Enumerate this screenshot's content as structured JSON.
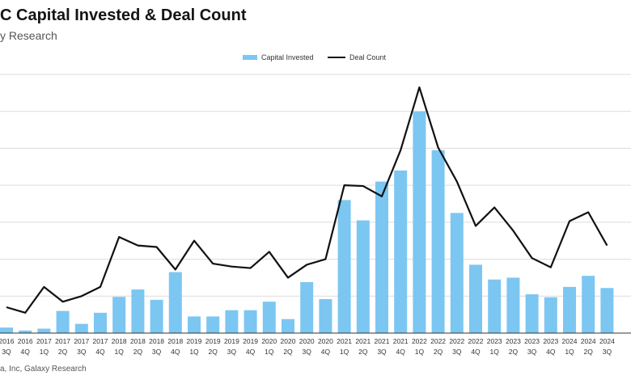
{
  "title": "C Capital Invested & Deal Count",
  "subtitle": "y Research",
  "source": "a, Inc, Galaxy Research",
  "legend": {
    "capital_label": "Capital Invested",
    "deal_label": "Deal Count"
  },
  "colors": {
    "bar": "#7cc6f2",
    "line": "#111111",
    "grid": "#dcdcdc",
    "axis": "#333333"
  },
  "chart_data": {
    "type": "bar",
    "title": "C Capital Invested & Deal Count",
    "grid": true,
    "legend_position": "top",
    "categories": [
      [
        "2016",
        "3Q"
      ],
      [
        "2016",
        "4Q"
      ],
      [
        "2017",
        "1Q"
      ],
      [
        "2017",
        "2Q"
      ],
      [
        "2017",
        "3Q"
      ],
      [
        "2017",
        "4Q"
      ],
      [
        "2018",
        "1Q"
      ],
      [
        "2018",
        "2Q"
      ],
      [
        "2018",
        "3Q"
      ],
      [
        "2018",
        "4Q"
      ],
      [
        "2019",
        "1Q"
      ],
      [
        "2019",
        "2Q"
      ],
      [
        "2019",
        "3Q"
      ],
      [
        "2019",
        "4Q"
      ],
      [
        "2020",
        "1Q"
      ],
      [
        "2020",
        "2Q"
      ],
      [
        "2020",
        "3Q"
      ],
      [
        "2020",
        "4Q"
      ],
      [
        "2021",
        "1Q"
      ],
      [
        "2021",
        "2Q"
      ],
      [
        "2021",
        "3Q"
      ],
      [
        "2021",
        "4Q"
      ],
      [
        "2022",
        "1Q"
      ],
      [
        "2022",
        "2Q"
      ],
      [
        "2022",
        "3Q"
      ],
      [
        "2022",
        "4Q"
      ],
      [
        "2023",
        "1Q"
      ],
      [
        "2023",
        "2Q"
      ],
      [
        "2023",
        "3Q"
      ],
      [
        "2023",
        "4Q"
      ],
      [
        "2024",
        "1Q"
      ],
      [
        "2024",
        "2Q"
      ],
      [
        "2024",
        "3Q"
      ]
    ],
    "series": [
      {
        "name": "Capital Invested",
        "type": "bar",
        "values": [
          0.15,
          0.07,
          0.12,
          0.6,
          0.25,
          0.55,
          0.98,
          1.18,
          0.9,
          1.65,
          0.45,
          0.45,
          0.62,
          0.62,
          0.85,
          0.38,
          1.38,
          0.92,
          3.6,
          3.05,
          4.1,
          4.4,
          6.0,
          4.95,
          3.25,
          1.85,
          1.45,
          1.5,
          1.05,
          0.97,
          1.25,
          1.55,
          1.22
        ]
      },
      {
        "name": "Deal Count",
        "type": "line",
        "values": [
          0.7,
          0.55,
          1.25,
          0.85,
          1.0,
          1.25,
          2.6,
          2.37,
          2.33,
          1.72,
          2.5,
          1.88,
          1.8,
          1.76,
          2.2,
          1.5,
          1.85,
          2.0,
          4.0,
          3.98,
          3.7,
          4.95,
          6.65,
          5.02,
          4.1,
          2.9,
          3.4,
          2.77,
          2.03,
          1.78,
          3.03,
          3.27,
          2.37
        ]
      }
    ],
    "ylim": [
      0,
      7
    ]
  }
}
